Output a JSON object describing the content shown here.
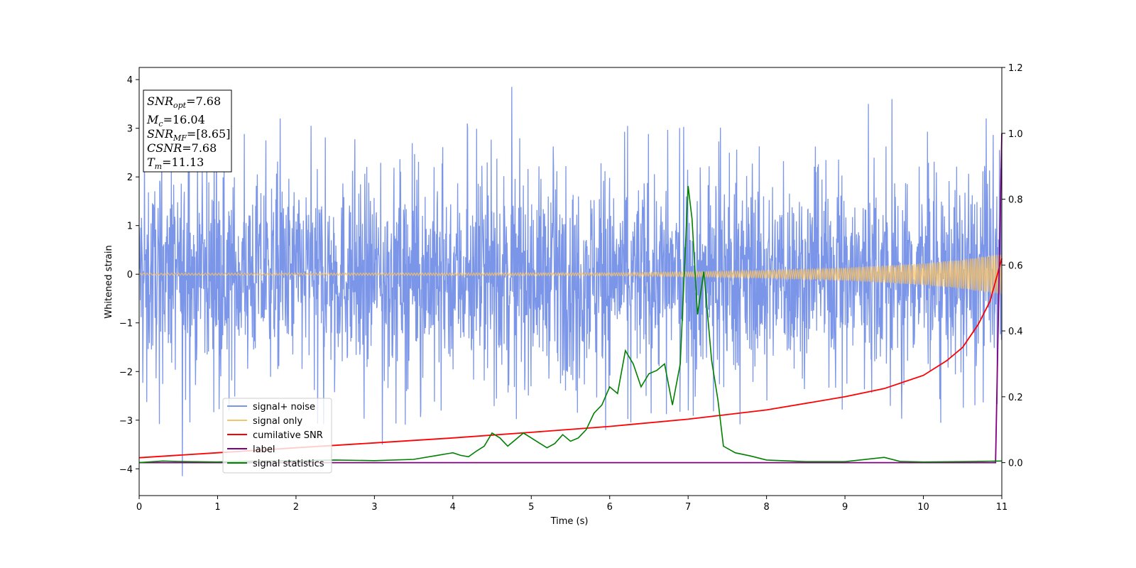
{
  "chart_data": {
    "type": "line",
    "title": "",
    "xlabel": "Time (s)",
    "ylabel": "Whitened strain",
    "xlim": [
      0,
      11
    ],
    "ylim_left": [
      -4.55,
      4.25
    ],
    "ylim_right": [
      -0.1,
      1.2
    ],
    "x_ticks": [
      0,
      1,
      2,
      3,
      4,
      5,
      6,
      7,
      8,
      9,
      10,
      11
    ],
    "y_ticks_left": [
      -4,
      -3,
      -2,
      -1,
      0,
      1,
      2,
      3,
      4
    ],
    "y_ticks_right": [
      0.0,
      0.2,
      0.4,
      0.6,
      0.8,
      1.0,
      1.2
    ],
    "grid": false,
    "legend_position": "lower-left",
    "colors": {
      "signal_noise": "#7b95e8",
      "signal_only": "#f5c26b",
      "cumulative_snr": "#ff0000",
      "label": "#800080",
      "signal_statistics": "#008000"
    },
    "annotation": {
      "snr_opt": {
        "base": "SNR",
        "sub": "opt",
        "value": "=7.68"
      },
      "mc": {
        "base": "M",
        "sub": "c",
        "value": "=16.04"
      },
      "snr_mf": {
        "base": "SNR",
        "sub": "MF",
        "value": "=[8.65]"
      },
      "csnr": {
        "base": "CSNR",
        "value": "=7.68"
      },
      "tm": {
        "base": "T",
        "sub": "m",
        "value": "=11.13"
      }
    },
    "series": [
      {
        "name": "signal+ noise",
        "axis": "left",
        "style": "noise",
        "amplitude_typical": 1.3,
        "peaks": [
          [
            0.55,
            -4.15
          ],
          [
            4.75,
            3.85
          ],
          [
            1.8,
            3.2
          ],
          [
            3.1,
            -3.5
          ],
          [
            5.95,
            -3.2
          ],
          [
            9.3,
            3.5
          ],
          [
            9.6,
            3.6
          ],
          [
            10.8,
            3.2
          ]
        ]
      },
      {
        "name": "signal only",
        "axis": "left",
        "style": "chirp",
        "envelope": [
          [
            0,
            0.02
          ],
          [
            6,
            0.03
          ],
          [
            7,
            0.05
          ],
          [
            8,
            0.08
          ],
          [
            9,
            0.13
          ],
          [
            10,
            0.22
          ],
          [
            10.5,
            0.3
          ],
          [
            11,
            0.42
          ]
        ]
      },
      {
        "name": "cumilative SNR",
        "axis": "right",
        "x": [
          0,
          1,
          2,
          3,
          4,
          5,
          6,
          7,
          8,
          9,
          9.5,
          10,
          10.3,
          10.5,
          10.7,
          10.85,
          11
        ],
        "y": [
          0.015,
          0.03,
          0.045,
          0.06,
          0.075,
          0.092,
          0.11,
          0.132,
          0.16,
          0.2,
          0.225,
          0.265,
          0.31,
          0.35,
          0.42,
          0.49,
          0.62
        ]
      },
      {
        "name": "label",
        "axis": "right",
        "x": [
          0,
          10.92,
          10.96,
          11
        ],
        "y": [
          0,
          0,
          0.5,
          1.0
        ]
      },
      {
        "name": "signal statistics",
        "axis": "right",
        "x": [
          0,
          0.3,
          0.6,
          1.0,
          1.5,
          2.0,
          2.5,
          3.0,
          3.5,
          3.8,
          4.0,
          4.1,
          4.2,
          4.3,
          4.4,
          4.5,
          4.6,
          4.7,
          4.8,
          4.9,
          5.0,
          5.1,
          5.2,
          5.3,
          5.4,
          5.5,
          5.6,
          5.7,
          5.8,
          5.9,
          6.0,
          6.1,
          6.2,
          6.3,
          6.4,
          6.5,
          6.6,
          6.7,
          6.8,
          6.9,
          7.0,
          7.05,
          7.12,
          7.2,
          7.3,
          7.38,
          7.45,
          7.6,
          7.8,
          8.0,
          8.5,
          9.0,
          9.5,
          9.7,
          10.0,
          10.5,
          11.0
        ],
        "y": [
          0.0,
          0.005,
          0.003,
          0.002,
          0.005,
          0.006,
          0.008,
          0.006,
          0.01,
          0.022,
          0.03,
          0.022,
          0.018,
          0.035,
          0.05,
          0.09,
          0.075,
          0.05,
          0.07,
          0.09,
          0.075,
          0.06,
          0.045,
          0.058,
          0.085,
          0.065,
          0.075,
          0.1,
          0.15,
          0.175,
          0.23,
          0.21,
          0.34,
          0.3,
          0.23,
          0.27,
          0.28,
          0.3,
          0.175,
          0.3,
          0.84,
          0.74,
          0.45,
          0.58,
          0.31,
          0.19,
          0.05,
          0.03,
          0.02,
          0.008,
          0.003,
          0.003,
          0.016,
          0.004,
          0.002,
          0.003,
          0.005
        ]
      }
    ]
  }
}
